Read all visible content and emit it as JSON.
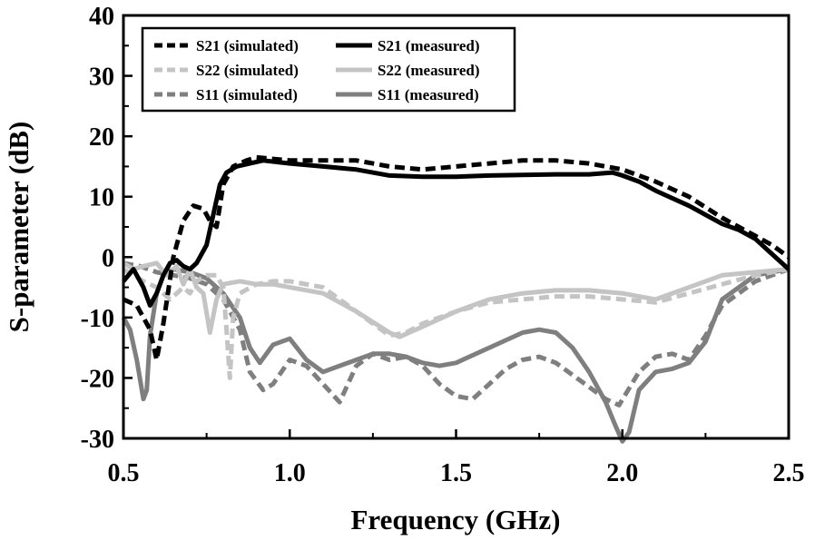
{
  "chart_data": {
    "type": "line",
    "xlabel": "Frequency (GHz)",
    "ylabel": "S-parameter (dB)",
    "xlim": [
      0.5,
      2.5
    ],
    "ylim": [
      -30,
      40
    ],
    "xticks": [
      0.5,
      1.0,
      1.5,
      2.0,
      2.5
    ],
    "xtick_labels": [
      "0.5",
      "1.0",
      "1.5",
      "2.0",
      "2.5"
    ],
    "yticks": [
      -30,
      -20,
      -10,
      0,
      10,
      20,
      30,
      40
    ],
    "ytick_labels": [
      "-30",
      "-20",
      "-10",
      "0",
      "10",
      "20",
      "30",
      "40"
    ],
    "grid": false,
    "legend_position": "top-left",
    "series": [
      {
        "name": "S21 (simulated)",
        "color": "#000000",
        "style": "dashed",
        "x": [
          0.5,
          0.54,
          0.58,
          0.6,
          0.62,
          0.65,
          0.68,
          0.71,
          0.74,
          0.76,
          0.78,
          0.8,
          0.83,
          0.87,
          0.9,
          1.0,
          1.1,
          1.2,
          1.3,
          1.4,
          1.5,
          1.6,
          1.7,
          1.8,
          1.9,
          2.0,
          2.1,
          2.2,
          2.3,
          2.35,
          2.4,
          2.45,
          2.5
        ],
        "y": [
          -7,
          -8,
          -12,
          -17,
          -11,
          0,
          6,
          8.5,
          8,
          6,
          5,
          12,
          15,
          16,
          16.5,
          16,
          16,
          16,
          15,
          14.5,
          15,
          15.5,
          16,
          16,
          15.5,
          14.5,
          12.5,
          10,
          6.5,
          5,
          3.5,
          2,
          0
        ]
      },
      {
        "name": "S21 (measured)",
        "color": "#000000",
        "style": "solid",
        "x": [
          0.5,
          0.53,
          0.56,
          0.58,
          0.6,
          0.62,
          0.64,
          0.66,
          0.68,
          0.7,
          0.72,
          0.75,
          0.77,
          0.79,
          0.81,
          0.84,
          0.88,
          0.92,
          1.0,
          1.1,
          1.2,
          1.3,
          1.4,
          1.5,
          1.6,
          1.7,
          1.8,
          1.9,
          1.97,
          2.0,
          2.05,
          2.1,
          2.2,
          2.3,
          2.35,
          2.4,
          2.45,
          2.5
        ],
        "y": [
          -4,
          -2,
          -5,
          -8,
          -6,
          -3,
          -1,
          -0.5,
          -1.5,
          -2,
          -1,
          2,
          7,
          12,
          14,
          15,
          15.5,
          16,
          15.5,
          15,
          14.5,
          13.5,
          13.3,
          13.3,
          13.5,
          13.6,
          13.7,
          13.7,
          14,
          13.5,
          12.5,
          11,
          8.5,
          5.5,
          4.5,
          3,
          0.5,
          -2
        ]
      },
      {
        "name": "S22 (simulated)",
        "color": "#c4c4c4",
        "style": "dashed",
        "x": [
          0.5,
          0.53,
          0.56,
          0.6,
          0.64,
          0.68,
          0.7,
          0.72,
          0.75,
          0.78,
          0.8,
          0.81,
          0.82,
          0.83,
          0.85,
          0.9,
          0.95,
          1.0,
          1.1,
          1.2,
          1.3,
          1.35,
          1.4,
          1.5,
          1.6,
          1.7,
          1.8,
          1.9,
          2.0,
          2.1,
          2.2,
          2.3,
          2.4,
          2.5
        ],
        "y": [
          -2,
          -3,
          -4,
          -5,
          -7,
          -5,
          -6,
          -4,
          -3,
          -3,
          -5,
          -12,
          -20,
          -10,
          -6,
          -4.5,
          -4,
          -4,
          -5,
          -9,
          -13,
          -12.5,
          -11,
          -9,
          -7.5,
          -7,
          -6.5,
          -6.5,
          -7,
          -7.5,
          -6,
          -4.5,
          -3,
          -2
        ]
      },
      {
        "name": "S22 (measured)",
        "color": "#c4c4c4",
        "style": "solid",
        "x": [
          0.5,
          0.53,
          0.56,
          0.6,
          0.63,
          0.66,
          0.68,
          0.7,
          0.72,
          0.74,
          0.76,
          0.78,
          0.8,
          0.85,
          0.9,
          0.95,
          1.0,
          1.1,
          1.2,
          1.3,
          1.33,
          1.4,
          1.5,
          1.6,
          1.7,
          1.8,
          1.9,
          2.0,
          2.1,
          2.2,
          2.3,
          2.4,
          2.5
        ],
        "y": [
          -1,
          -2,
          -1.5,
          -1,
          -3,
          -1.5,
          -4.5,
          -2,
          -5,
          -6,
          -12.5,
          -7,
          -4.5,
          -4,
          -4.5,
          -4.5,
          -5,
          -6,
          -9,
          -12.5,
          -13.2,
          -11.5,
          -9,
          -7,
          -6,
          -5.5,
          -5.5,
          -6,
          -7,
          -5,
          -3,
          -2.5,
          -2
        ]
      },
      {
        "name": "S11 (simulated)",
        "color": "#7f7f7f",
        "style": "dashed",
        "x": [
          0.5,
          0.55,
          0.6,
          0.65,
          0.7,
          0.75,
          0.8,
          0.85,
          0.88,
          0.92,
          0.95,
          1.0,
          1.05,
          1.1,
          1.15,
          1.2,
          1.25,
          1.3,
          1.35,
          1.4,
          1.45,
          1.5,
          1.55,
          1.6,
          1.65,
          1.7,
          1.75,
          1.8,
          1.85,
          1.9,
          1.95,
          1.99,
          2.05,
          2.1,
          2.15,
          2.2,
          2.25,
          2.3,
          2.4,
          2.5
        ],
        "y": [
          -1,
          -1.5,
          -2.5,
          -3,
          -3.5,
          -4.5,
          -7,
          -12,
          -19,
          -22,
          -21,
          -17,
          -18,
          -21,
          -24,
          -18,
          -16,
          -17,
          -16.5,
          -18,
          -21,
          -23,
          -23.5,
          -21,
          -18.5,
          -17,
          -16.5,
          -17.5,
          -19.5,
          -21.5,
          -23.5,
          -24.5,
          -19,
          -16.5,
          -16,
          -17,
          -13,
          -8,
          -4,
          -2
        ]
      },
      {
        "name": "S11 (measured)",
        "color": "#7f7f7f",
        "style": "solid",
        "x": [
          0.5,
          0.52,
          0.54,
          0.56,
          0.57,
          0.58,
          0.6,
          0.62,
          0.65,
          0.7,
          0.75,
          0.8,
          0.85,
          0.88,
          0.91,
          0.95,
          1.0,
          1.05,
          1.1,
          1.15,
          1.2,
          1.25,
          1.3,
          1.35,
          1.4,
          1.45,
          1.5,
          1.6,
          1.7,
          1.75,
          1.8,
          1.85,
          1.9,
          1.95,
          1.98,
          2.0,
          2.02,
          2.05,
          2.1,
          2.15,
          2.2,
          2.25,
          2.3,
          2.4,
          2.5
        ],
        "y": [
          -10,
          -12,
          -17,
          -23.5,
          -22,
          -13,
          -6,
          -3,
          -2,
          -2.5,
          -3.5,
          -6,
          -10,
          -15,
          -17.5,
          -14.5,
          -13.5,
          -17,
          -19,
          -18,
          -17,
          -16,
          -16,
          -16.5,
          -17.5,
          -18,
          -17.5,
          -15,
          -12.5,
          -12,
          -12.5,
          -15,
          -19,
          -24,
          -28,
          -30.5,
          -29,
          -22,
          -19,
          -18.5,
          -17.5,
          -14,
          -7,
          -3,
          -2
        ]
      }
    ]
  }
}
